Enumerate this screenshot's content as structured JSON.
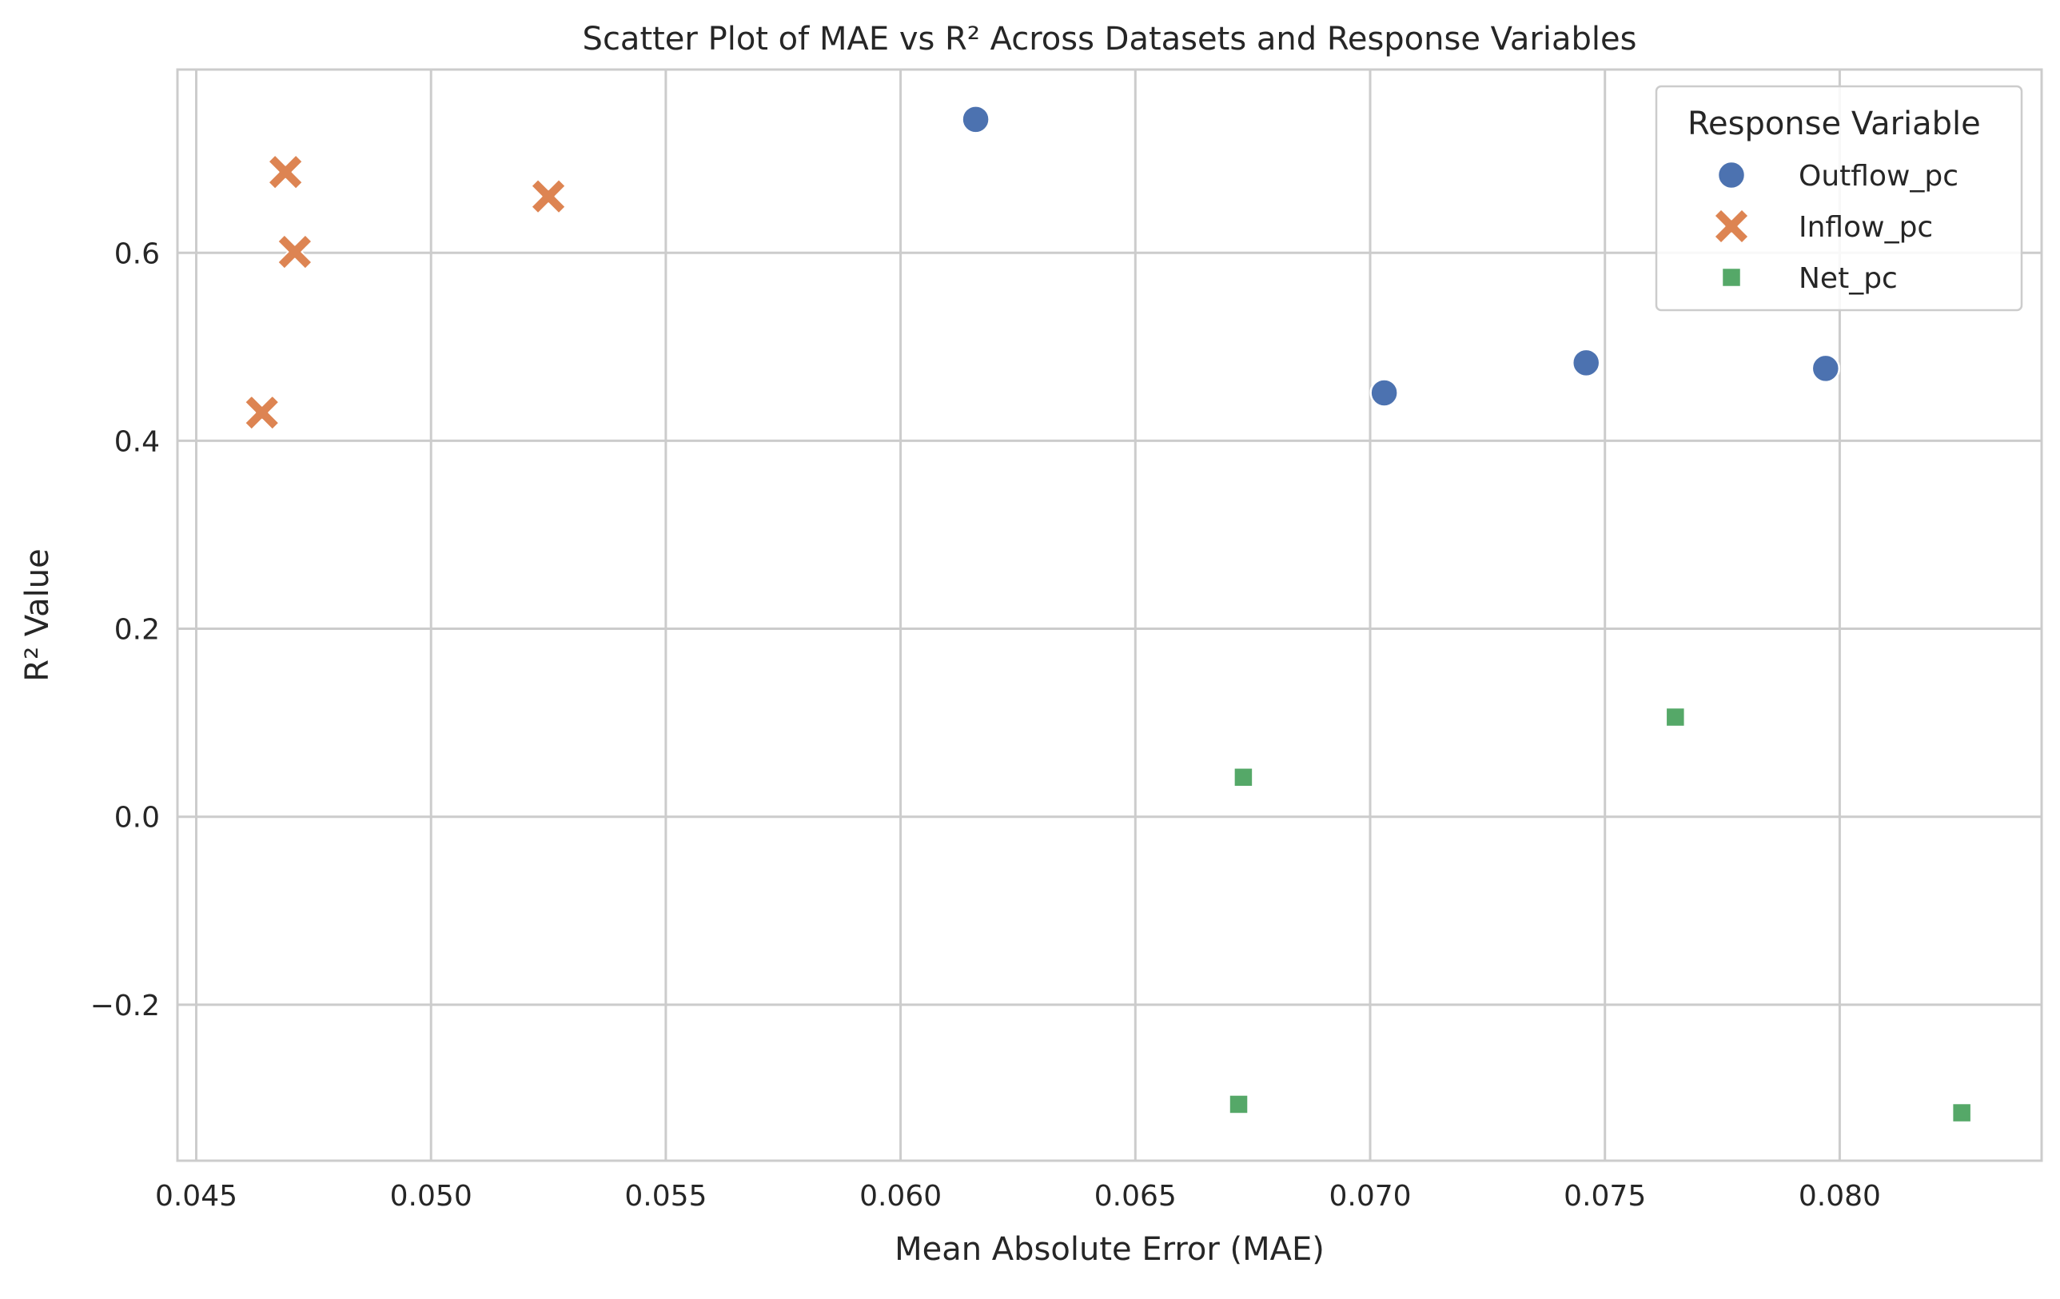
{
  "chart_data": {
    "type": "scatter",
    "title": "Scatter Plot of MAE vs R² Across Datasets and Response Variables",
    "xlabel": "Mean Absolute Error (MAE)",
    "ylabel": "R² Value",
    "xlim": [
      0.0446,
      0.0843
    ],
    "ylim": [
      -0.366,
      0.795
    ],
    "xticks": [
      0.045,
      0.05,
      0.055,
      0.06,
      0.065,
      0.07,
      0.075,
      0.08
    ],
    "xtick_labels": [
      "0.045",
      "0.050",
      "0.055",
      "0.060",
      "0.065",
      "0.070",
      "0.075",
      "0.080"
    ],
    "yticks": [
      -0.2,
      0.0,
      0.2,
      0.4,
      0.6
    ],
    "ytick_labels": [
      "−0.2",
      "0.0",
      "0.2",
      "0.4",
      "0.6"
    ],
    "grid": true,
    "legend": {
      "title": "Response Variable",
      "placement": "top-right"
    },
    "series": [
      {
        "name": "Outflow_pc",
        "marker": "circle",
        "color": "#4c72b0",
        "points": [
          [
            0.0616,
            0.742
          ],
          [
            0.0703,
            0.451
          ],
          [
            0.0746,
            0.483
          ],
          [
            0.0797,
            0.477
          ]
        ]
      },
      {
        "name": "Inflow_pc",
        "marker": "x",
        "color": "#dd8452",
        "points": [
          [
            0.0469,
            0.686
          ],
          [
            0.0471,
            0.601
          ],
          [
            0.0464,
            0.43
          ],
          [
            0.0525,
            0.66
          ]
        ]
      },
      {
        "name": "Net_pc",
        "marker": "square",
        "color": "#55a868",
        "points": [
          [
            0.0673,
            0.042
          ],
          [
            0.0765,
            0.106
          ],
          [
            0.0672,
            -0.306
          ],
          [
            0.0826,
            -0.315
          ]
        ]
      }
    ]
  }
}
